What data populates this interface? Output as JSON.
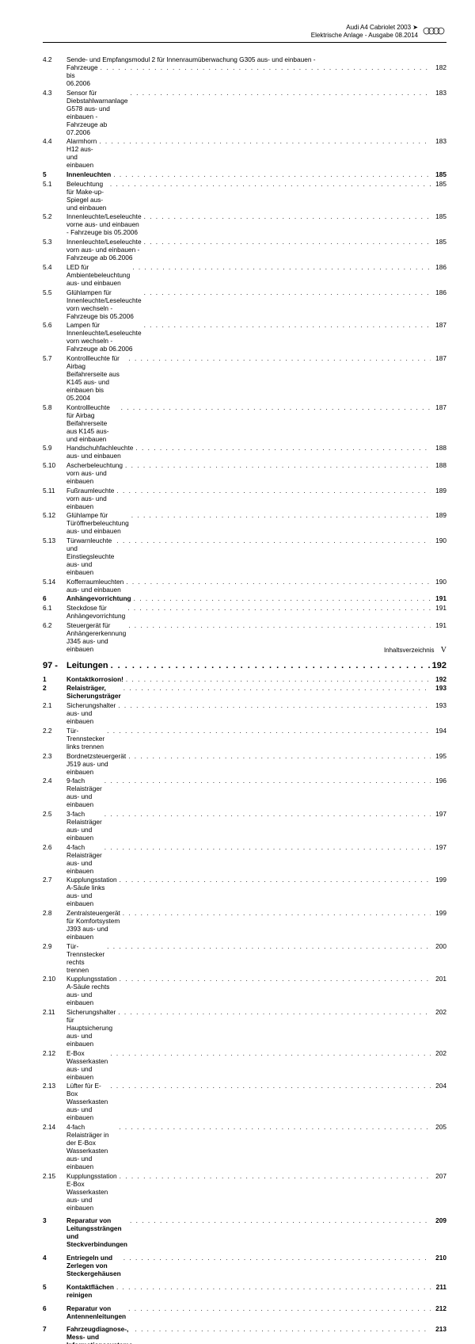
{
  "header": {
    "line1": "Audi A4 Cabriolet 2003 ➤",
    "line2": "Elektrische Anlage - Ausgabe 08.2014",
    "brand": "Audi"
  },
  "footer": {
    "label": "Inhaltsverzeichnis",
    "page": "V"
  },
  "toc": [
    {
      "type": "entry",
      "num": "4.2",
      "label": "Sende- und Empfangsmodul 2 für Innenraumüberwachung G305 aus- und einbauen - Fahrzeuge bis 06.2006",
      "page": "182",
      "multiline": true
    },
    {
      "type": "entry",
      "num": "4.3",
      "label": "Sensor für Diebstahlwarnanlage G578 aus- und einbauen - Fahrzeuge ab 07.2006",
      "page": "183"
    },
    {
      "type": "entry",
      "num": "4.4",
      "label": "Alarmhorn H12 aus- und einbauen",
      "page": "183"
    },
    {
      "type": "entry",
      "num": "5",
      "label": "Innenleuchten",
      "page": "185",
      "bold": true
    },
    {
      "type": "entry",
      "num": "5.1",
      "label": "Beleuchtung für Make-up-Spiegel aus- und einbauen",
      "page": "185"
    },
    {
      "type": "entry",
      "num": "5.2",
      "label": "Innenleuchte/Leseleuchte vorne aus- und einbauen - Fahrzeuge bis 05.2006",
      "page": "185"
    },
    {
      "type": "entry",
      "num": "5.3",
      "label": "Innenleuchte/Leseleuchte vorn aus- und einbauen - Fahrzeuge ab 06.2006",
      "page": "185"
    },
    {
      "type": "entry",
      "num": "5.4",
      "label": "LED für Ambientebeleuchtung aus- und einbauen",
      "page": "186"
    },
    {
      "type": "entry",
      "num": "5.5",
      "label": "Glühlampen für Innenleuchte/Leseleuchte vorn wechseln - Fahrzeuge bis 05.2006",
      "page": "186"
    },
    {
      "type": "entry",
      "num": "5.6",
      "label": "Lampen für Innenleuchte/Leseleuchte vorn wechseln - Fahrzeuge ab 06.2006",
      "page": "187"
    },
    {
      "type": "entry",
      "num": "5.7",
      "label": "Kontrollleuchte für Airbag Beifahrerseite aus K145 aus- und einbauen bis 05.2004",
      "page": "187"
    },
    {
      "type": "entry",
      "num": "5.8",
      "label": "Kontrollleuchte für Airbag Beifahrerseite aus K145 aus- und einbauen",
      "page": "187"
    },
    {
      "type": "entry",
      "num": "5.9",
      "label": "Handschuhfachleuchte aus- und einbauen",
      "page": "188"
    },
    {
      "type": "entry",
      "num": "5.10",
      "label": "Ascherbeleuchtung vorn aus- und einbauen",
      "page": "188"
    },
    {
      "type": "entry",
      "num": "5.11",
      "label": "Fußraumleuchte vorn aus- und einbauen",
      "page": "189"
    },
    {
      "type": "entry",
      "num": "5.12",
      "label": "Glühlampe für Türöffnerbeleuchtung aus- und einbauen",
      "page": "189"
    },
    {
      "type": "entry",
      "num": "5.13",
      "label": "Türwarnleuchte und Einstiegsleuchte aus- und einbauen",
      "page": "190"
    },
    {
      "type": "entry",
      "num": "5.14",
      "label": "Kofferraumleuchten aus- und einbauen",
      "page": "190"
    },
    {
      "type": "entry",
      "num": "6",
      "label": "Anhängevorrichtung",
      "page": "191",
      "bold": true
    },
    {
      "type": "entry",
      "num": "6.1",
      "label": "Steckdose für Anhängevorrichtung",
      "page": "191"
    },
    {
      "type": "entry",
      "num": "6.2",
      "label": "Steuergerät für Anhängererkennung J345 aus- und einbauen",
      "page": "191"
    },
    {
      "type": "chapter",
      "num": "97 -",
      "label": "Leitungen",
      "page": "192"
    },
    {
      "type": "entry",
      "num": "1",
      "label": "Kontaktkorrosion!",
      "page": "192",
      "bold": true
    },
    {
      "type": "entry",
      "num": "2",
      "label": "Relaisträger, Sicherungsträger",
      "page": "193",
      "bold": true
    },
    {
      "type": "entry",
      "num": "2.1",
      "label": "Sicherungshalter aus- und einbauen",
      "page": "193"
    },
    {
      "type": "entry",
      "num": "2.2",
      "label": "Tür-Trennstecker links trennen",
      "page": "194"
    },
    {
      "type": "entry",
      "num": "2.3",
      "label": "Bordnetzsteuergerät J519 aus- und einbauen",
      "page": "195"
    },
    {
      "type": "entry",
      "num": "2.4",
      "label": "9-fach Relaisträger aus- und einbauen",
      "page": "196"
    },
    {
      "type": "entry",
      "num": "2.5",
      "label": "3-fach Relaisträger aus- und einbauen",
      "page": "197"
    },
    {
      "type": "entry",
      "num": "2.6",
      "label": "4-fach Relaisträger aus- und einbauen",
      "page": "197"
    },
    {
      "type": "entry",
      "num": "2.7",
      "label": "Kupplungsstation A-Säule links aus- und einbauen",
      "page": "199"
    },
    {
      "type": "entry",
      "num": "2.8",
      "label": "Zentralsteuergerät für Komfortsystem J393 aus- und einbauen",
      "page": "199"
    },
    {
      "type": "entry",
      "num": "2.9",
      "label": "Tür-Trennstecker rechts trennen",
      "page": "200"
    },
    {
      "type": "entry",
      "num": "2.10",
      "label": "Kupplungsstation A-Säule rechts aus- und einbauen",
      "page": "201"
    },
    {
      "type": "entry",
      "num": "2.11",
      "label": "Sicherungshalter für Hauptsicherung aus- und einbauen",
      "page": "202"
    },
    {
      "type": "entry",
      "num": "2.12",
      "label": "E-Box Wasserkasten aus- und einbauen",
      "page": "202"
    },
    {
      "type": "entry",
      "num": "2.13",
      "label": "Lüfter für E-Box Wasserkasten aus- und einbauen",
      "page": "204"
    },
    {
      "type": "entry",
      "num": "2.14",
      "label": "4-fach Relaisträger in der E-Box Wasserkasten aus- und einbauen",
      "page": "205"
    },
    {
      "type": "entry",
      "num": "2.15",
      "label": "Kupplungsstation E-Box Wasserkasten aus- und einbauen",
      "page": "207"
    },
    {
      "type": "spacer"
    },
    {
      "type": "entry",
      "num": "3",
      "label": "Reparatur von Leitungssträngen und Steckverbindungen",
      "page": "209",
      "bold": true
    },
    {
      "type": "spacer"
    },
    {
      "type": "entry",
      "num": "4",
      "label": "Entriegeln und Zerlegen von Steckergehäusen",
      "page": "210",
      "bold": true
    },
    {
      "type": "spacer"
    },
    {
      "type": "entry",
      "num": "5",
      "label": "Kontaktflächen reinigen",
      "page": "211",
      "bold": true
    },
    {
      "type": "spacer"
    },
    {
      "type": "entry",
      "num": "6",
      "label": "Reparatur von Antennenleitungen",
      "page": "212",
      "bold": true
    },
    {
      "type": "spacer"
    },
    {
      "type": "entry",
      "num": "7",
      "label": "Fahrzeugdiagnose-, Mess- und Informationssysteme",
      "page": "213",
      "bold": true
    }
  ]
}
